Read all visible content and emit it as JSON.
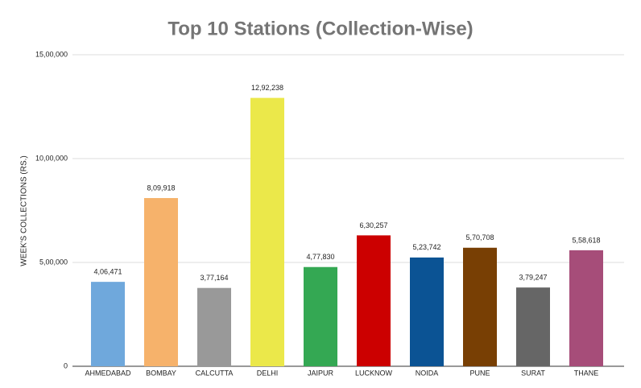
{
  "chart_data": {
    "type": "bar",
    "title": "Top 10 Stations (Collection-Wise)",
    "y_label": "WEEK'S COLLECTIONS (RS.)",
    "categories": [
      "AHMEDABAD",
      "BOMBAY",
      "CALCUTTA",
      "DELHI",
      "JAIPUR",
      "LUCKNOW",
      "NOIDA",
      "PUNE",
      "SURAT",
      "THANE"
    ],
    "values": [
      406471,
      809918,
      377164,
      1292238,
      477830,
      630257,
      523742,
      570708,
      379247,
      558618
    ],
    "value_labels": [
      "4,06,471",
      "8,09,918",
      "3,77,164",
      "12,92,238",
      "4,77,830",
      "6,30,257",
      "5,23,742",
      "5,70,708",
      "3,79,247",
      "5,58,618"
    ],
    "colors": [
      "#6fa8dc",
      "#f6b26b",
      "#999999",
      "#ebe84a",
      "#34a853",
      "#cc0000",
      "#0b5394",
      "#783f04",
      "#666666",
      "#a64d79"
    ],
    "ylim": [
      0,
      1500000
    ],
    "yticks": [
      0,
      {
        "value": 500000,
        "label": "5,00,000"
      },
      {
        "value": 1000000,
        "label": "10,00,000"
      },
      {
        "value": 1500000,
        "label": "15,00,000"
      }
    ],
    "grid": true
  }
}
